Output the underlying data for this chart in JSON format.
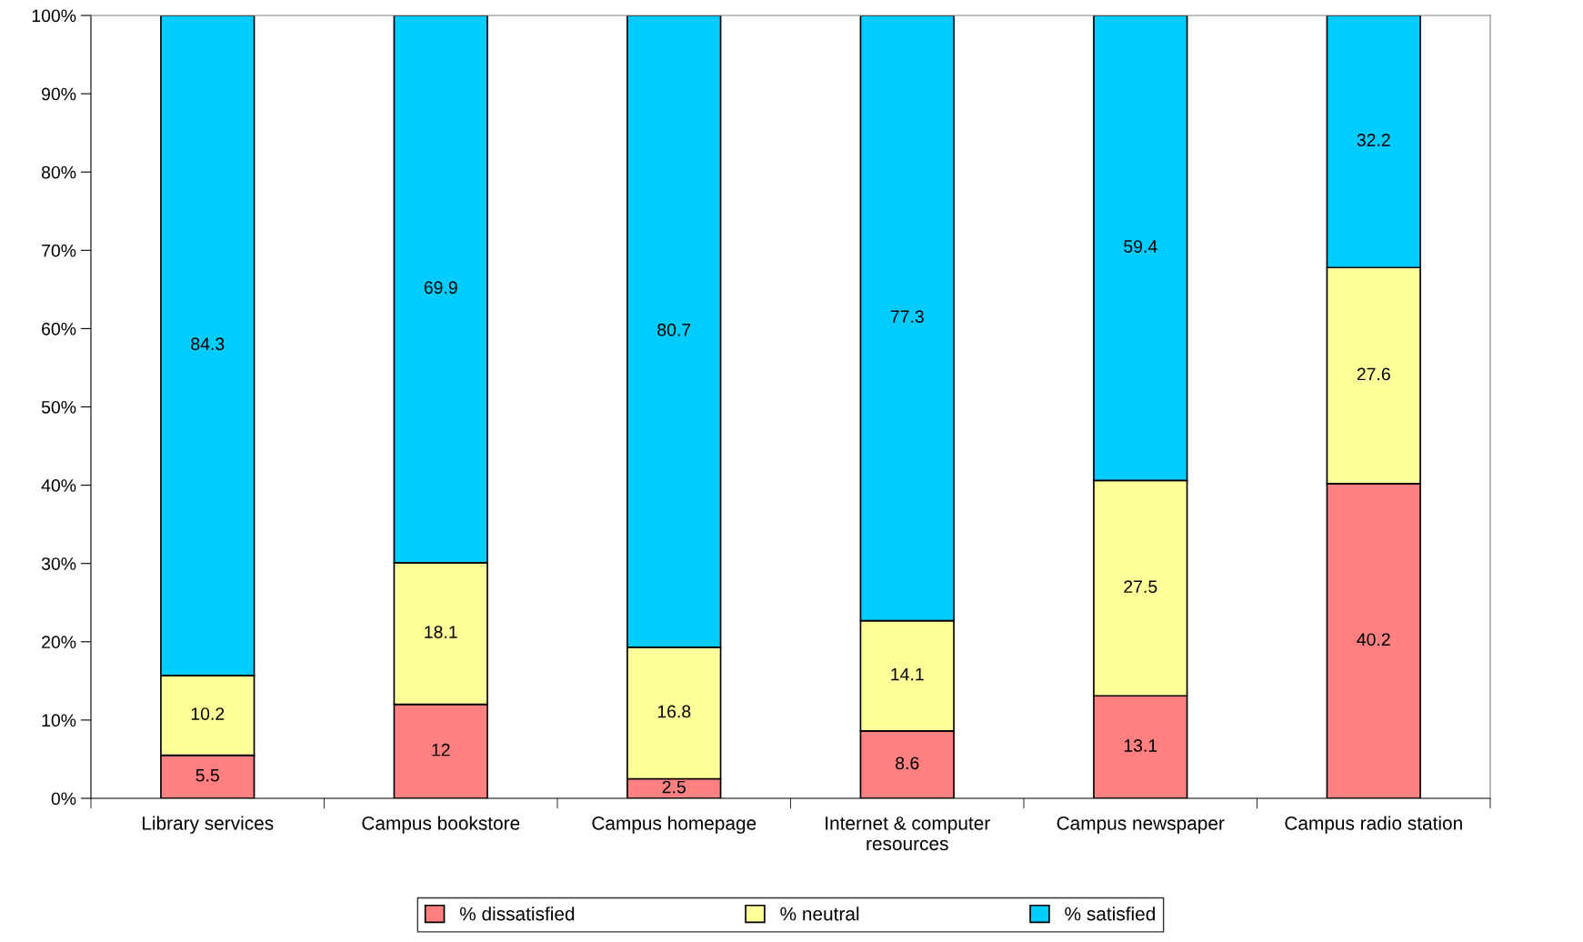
{
  "chart_data": {
    "type": "bar",
    "stacked": true,
    "data_labels": true,
    "legend": "bottom",
    "grid": false,
    "categories": [
      "Library services",
      "Campus bookstore",
      "Campus homepage",
      "Internet & computer\nresources",
      "Campus newspaper",
      "Campus radio station"
    ],
    "series": [
      {
        "name": "% dissatisfied",
        "color": "#ff8080",
        "values": [
          5.5,
          12,
          2.5,
          8.6,
          13.1,
          40.2
        ]
      },
      {
        "name": "% neutral",
        "color": "#ffff99",
        "values": [
          10.2,
          18.1,
          16.8,
          14.1,
          27.5,
          27.6
        ]
      },
      {
        "name": "% satisfied",
        "color": "#00ccff",
        "values": [
          84.3,
          69.9,
          80.7,
          77.3,
          59.4,
          32.2
        ]
      }
    ],
    "ylim": [
      0,
      100
    ],
    "yticks": [
      {
        "value": 0,
        "label": "0%"
      },
      {
        "value": 10,
        "label": "10%"
      },
      {
        "value": 20,
        "label": "20%"
      },
      {
        "value": 30,
        "label": "30%"
      },
      {
        "value": 40,
        "label": "40%"
      },
      {
        "value": 50,
        "label": "50%"
      },
      {
        "value": 60,
        "label": "60%"
      },
      {
        "value": 70,
        "label": "70%"
      },
      {
        "value": 80,
        "label": "80%"
      },
      {
        "value": 90,
        "label": "90%"
      },
      {
        "value": 100,
        "label": "100%"
      }
    ]
  }
}
